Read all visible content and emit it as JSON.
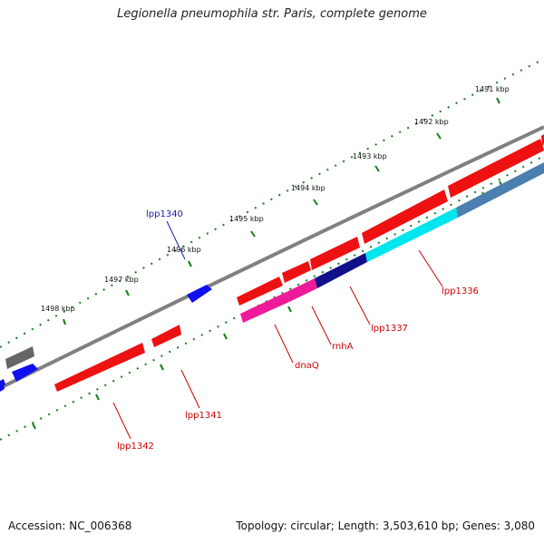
{
  "title": "Legionella pneumophila str. Paris, complete genome",
  "footer": {
    "accession": "Accession: NC_006368",
    "summary": "Topology: circular; Length: 3,503,610 bp; Genes: 3,080"
  },
  "ticks": [
    "1491 kbp",
    "1492 kbp",
    "1493 kbp",
    "1494 kbp",
    "1495 kbp",
    "1496 kbp",
    "1497 kbp",
    "1498 kbp"
  ],
  "gene_labels": [
    {
      "id": "lpp1340",
      "text": "lpp1340",
      "color": "#1a1aaa"
    },
    {
      "id": "lpp1336",
      "text": "lpp1336",
      "color": "#cc0000"
    },
    {
      "id": "lpp1337",
      "text": "lpp1337",
      "color": "#cc0000"
    },
    {
      "id": "rnhA",
      "text": "rnhA",
      "color": "#cc0000"
    },
    {
      "id": "dnaQ",
      "text": "dnaQ",
      "color": "#cc0000"
    },
    {
      "id": "lpp1341",
      "text": "lpp1341",
      "color": "#cc0000"
    },
    {
      "id": "lpp1342",
      "text": "lpp1342",
      "color": "#cc0000"
    }
  ],
  "colors": {
    "backbone": "#808080",
    "forward_gene": "#1010ee",
    "reverse_gene": "#ee1111",
    "cyan_gene": "#00e5ee",
    "steel_gene": "#4a7fb0",
    "magenta_gene": "#ee1a99",
    "navy_gene": "#10108a",
    "pseudogene": "#666666",
    "tick": "#1a7a1a"
  }
}
